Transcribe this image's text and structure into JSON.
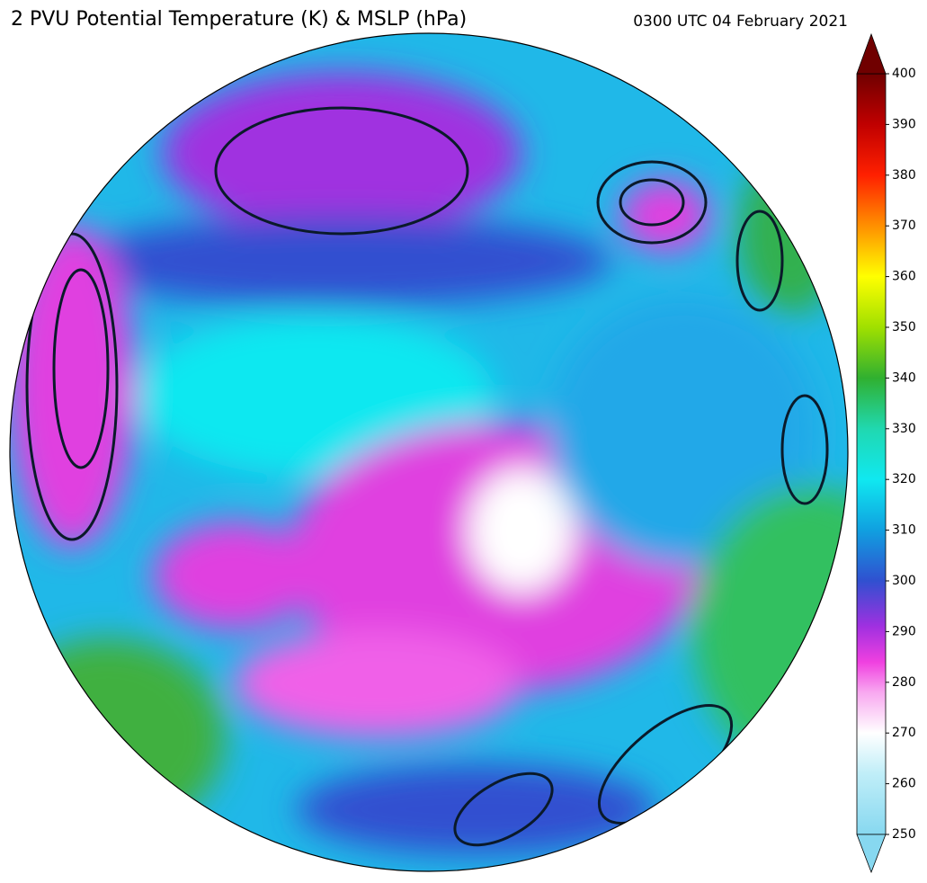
{
  "header": {
    "title": "2 PVU Potential Temperature (K) & MSLP (hPa)",
    "timestamp": "0300 UTC 04 February 2021"
  },
  "colorbar": {
    "lim": [
      250,
      400
    ],
    "ticks": [
      250,
      260,
      270,
      280,
      290,
      300,
      310,
      320,
      330,
      340,
      350,
      360,
      370,
      380,
      390,
      400
    ],
    "stops": [
      [
        250,
        "#87d8f0"
      ],
      [
        262,
        "#c0eef8"
      ],
      [
        270,
        "#ffffff"
      ],
      [
        278,
        "#f8a8f0"
      ],
      [
        284,
        "#f040e0"
      ],
      [
        291,
        "#a030e0"
      ],
      [
        300,
        "#3050d0"
      ],
      [
        310,
        "#10a0e0"
      ],
      [
        320,
        "#10e8f0"
      ],
      [
        330,
        "#20d8b0"
      ],
      [
        340,
        "#30b030"
      ],
      [
        350,
        "#a0e000"
      ],
      [
        360,
        "#ffff00"
      ],
      [
        370,
        "#ff9000"
      ],
      [
        380,
        "#ff2000"
      ],
      [
        390,
        "#c00000"
      ],
      [
        400,
        "#700000"
      ]
    ]
  }
}
